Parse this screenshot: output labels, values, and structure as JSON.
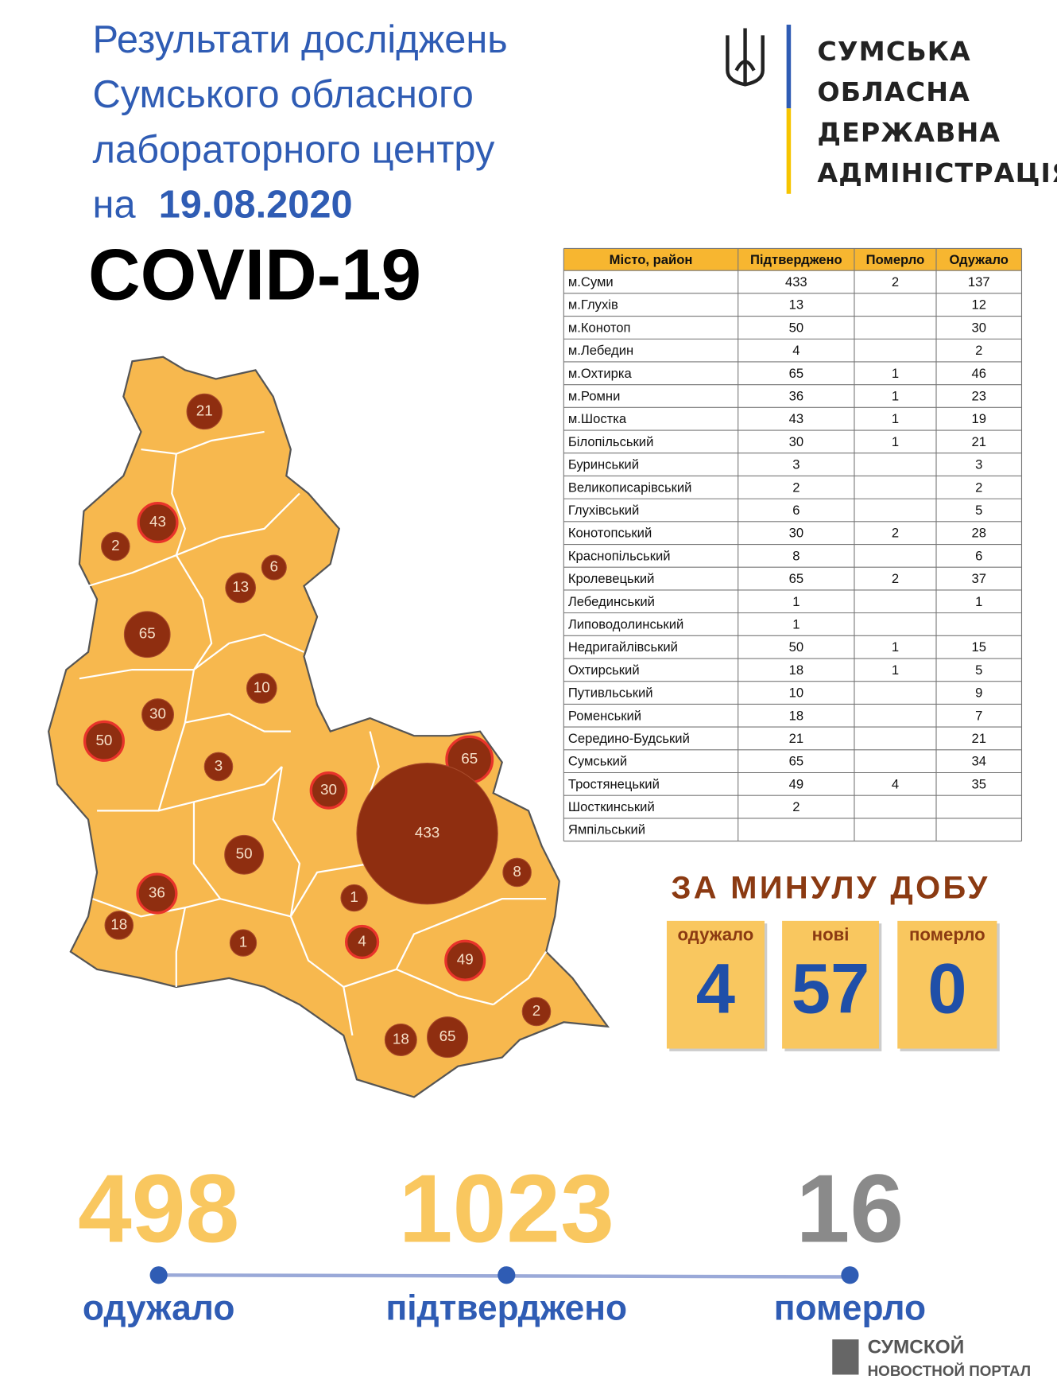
{
  "header": {
    "title": [
      "Результати досліджень",
      "Сумського обласного",
      "лабораторного центру"
    ],
    "date_prefix": "на",
    "date": "19.08.2020",
    "heading": "COVID-19"
  },
  "logo": {
    "lines": [
      "СУМСЬКА",
      "ОБЛАСНА",
      "ДЕРЖАВНА",
      "АДМІНІСТРАЦІЯ"
    ]
  },
  "table": {
    "header": [
      "Місто, район",
      "Підтверджено",
      "Померло",
      "Одужало"
    ],
    "rows": [
      [
        "м.Суми",
        433,
        2,
        137
      ],
      [
        "м.Глухів",
        13,
        null,
        12
      ],
      [
        "м.Конотоп",
        50,
        null,
        30
      ],
      [
        "м.Лебедин",
        4,
        null,
        2
      ],
      [
        "м.Охтирка",
        65,
        1,
        46
      ],
      [
        "м.Ромни",
        36,
        1,
        23
      ],
      [
        "м.Шостка",
        43,
        1,
        19
      ],
      [
        "Білопільський",
        30,
        1,
        21
      ],
      [
        "Буринський",
        3,
        null,
        3
      ],
      [
        "Великописарівський",
        2,
        null,
        2
      ],
      [
        "Глухівський",
        6,
        null,
        5
      ],
      [
        "Конотопський",
        30,
        2,
        28
      ],
      [
        "Краснопільський",
        8,
        null,
        6
      ],
      [
        "Кролевецький",
        65,
        2,
        37
      ],
      [
        "Лебединський",
        1,
        null,
        1
      ],
      [
        "Липоводолинський",
        1,
        null,
        null
      ],
      [
        "Недригайлівський",
        50,
        1,
        15
      ],
      [
        "Охтирський",
        18,
        1,
        5
      ],
      [
        "Путивльський",
        10,
        null,
        9
      ],
      [
        "Роменський",
        18,
        null,
        7
      ],
      [
        "Середино-Будський",
        21,
        null,
        21
      ],
      [
        "Сумський",
        65,
        null,
        34
      ],
      [
        "Тростянецький",
        49,
        4,
        35
      ],
      [
        "Шосткинський",
        2,
        null,
        null
      ],
      [
        "Ямпільський",
        null,
        null,
        null
      ]
    ]
  },
  "map": {
    "bubbles": [
      21,
      43,
      2,
      13,
      6,
      65,
      10,
      30,
      50,
      3,
      30,
      65,
      433,
      50,
      8,
      36,
      1,
      18,
      1,
      4,
      49,
      2,
      18,
      65
    ]
  },
  "daily": {
    "heading": "ЗА МИНУЛУ ДОБУ",
    "items": [
      {
        "label": "одужало",
        "value": 4
      },
      {
        "label": "нові",
        "value": 57
      },
      {
        "label": "померло",
        "value": 0
      }
    ]
  },
  "totals": [
    {
      "value": 498,
      "label": "одужало"
    },
    {
      "value": 1023,
      "label": "підтверджено"
    },
    {
      "value": 16,
      "label": "померло"
    }
  ],
  "watermark": [
    "СУМСКОЙ",
    "НОВОСТНОЙ ПОРТАЛ"
  ]
}
